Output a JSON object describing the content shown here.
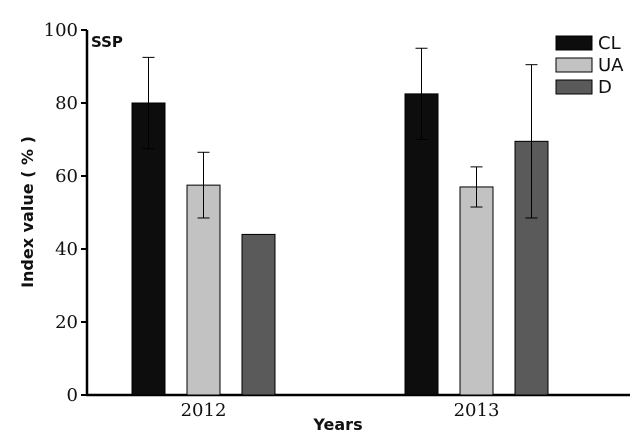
{
  "chart_data": {
    "type": "bar",
    "panel_label": "SSP",
    "xlabel": "Years",
    "ylabel": "Index value ( % )",
    "categories": [
      "2012",
      "2013"
    ],
    "ylim": [
      0,
      100
    ],
    "yticks": [
      0,
      20,
      40,
      60,
      80,
      100
    ],
    "grid": false,
    "legend_position": "top-right",
    "series": [
      {
        "name": "CL",
        "color": "#0d0d0d",
        "values": [
          80,
          82.5
        ],
        "errors": [
          12.5,
          12.5
        ]
      },
      {
        "name": "UA",
        "color": "#c2c2c2",
        "values": [
          57.5,
          57
        ],
        "errors": [
          9,
          5.5
        ]
      },
      {
        "name": "D",
        "color": "#5a5a5a",
        "values": [
          44,
          69.5
        ],
        "errors": [
          0,
          21
        ]
      }
    ]
  }
}
